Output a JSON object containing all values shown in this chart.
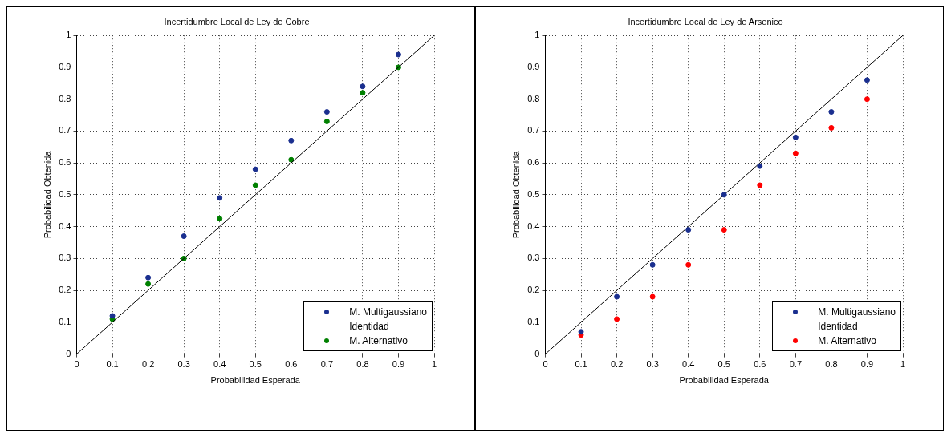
{
  "chart_data": [
    {
      "type": "scatter",
      "title": "Incertidumbre Local de Ley de Cobre",
      "xlabel": "Probabilidad Esperada",
      "ylabel": "Probabilidad Obtenida",
      "xlim": [
        0,
        1
      ],
      "ylim": [
        0,
        1
      ],
      "xticks": [
        0,
        0.1,
        0.2,
        0.3,
        0.4,
        0.5,
        0.6,
        0.7,
        0.8,
        0.9,
        1
      ],
      "yticks": [
        0,
        0.1,
        0.2,
        0.3,
        0.4,
        0.5,
        0.6,
        0.7,
        0.8,
        0.9,
        1
      ],
      "grid": true,
      "legend": "bottom right",
      "marker": "circle",
      "series": [
        {
          "name": "M. Multigaussiano",
          "color": "#1a2f8f",
          "x": [
            0.1,
            0.2,
            0.3,
            0.4,
            0.5,
            0.6,
            0.7,
            0.8,
            0.9
          ],
          "values": [
            0.12,
            0.24,
            0.37,
            0.49,
            0.58,
            0.67,
            0.76,
            0.84,
            0.94
          ]
        },
        {
          "name": "Identidad",
          "type": "line",
          "color": "#000000",
          "marker": "none",
          "x": [
            0,
            1
          ],
          "values": [
            0,
            1
          ]
        },
        {
          "name": "M. Alternativo",
          "color": "#008000",
          "x": [
            0.1,
            0.2,
            0.3,
            0.4,
            0.5,
            0.6,
            0.7,
            0.8,
            0.9
          ],
          "values": [
            0.11,
            0.22,
            0.3,
            0.425,
            0.53,
            0.61,
            0.73,
            0.82,
            0.9
          ]
        }
      ]
    },
    {
      "type": "scatter",
      "title": "Incertidumbre Local de Ley de Arsenico",
      "xlabel": "Probabilidad Esperada",
      "ylabel": "Probabilidad Obtenida",
      "xlim": [
        0,
        1
      ],
      "ylim": [
        0,
        1
      ],
      "xticks": [
        0,
        0.1,
        0.2,
        0.3,
        0.4,
        0.5,
        0.6,
        0.7,
        0.8,
        0.9,
        1
      ],
      "yticks": [
        0,
        0.1,
        0.2,
        0.3,
        0.4,
        0.5,
        0.6,
        0.7,
        0.8,
        0.9,
        1
      ],
      "grid": true,
      "legend": "bottom right",
      "marker": "circle",
      "series": [
        {
          "name": "M. Multigaussiano",
          "color": "#1a2f8f",
          "x": [
            0.1,
            0.2,
            0.3,
            0.4,
            0.5,
            0.6,
            0.7,
            0.8,
            0.9
          ],
          "values": [
            0.07,
            0.18,
            0.28,
            0.39,
            0.5,
            0.59,
            0.68,
            0.76,
            0.86
          ]
        },
        {
          "name": "Identidad",
          "type": "line",
          "color": "#000000",
          "marker": "none",
          "x": [
            0,
            1
          ],
          "values": [
            0,
            1
          ]
        },
        {
          "name": "M. Alternativo",
          "color": "#ff0000",
          "x": [
            0.1,
            0.2,
            0.3,
            0.4,
            0.5,
            0.6,
            0.7,
            0.8,
            0.9
          ],
          "values": [
            0.06,
            0.11,
            0.18,
            0.28,
            0.39,
            0.53,
            0.63,
            0.71,
            0.8
          ]
        }
      ]
    }
  ]
}
